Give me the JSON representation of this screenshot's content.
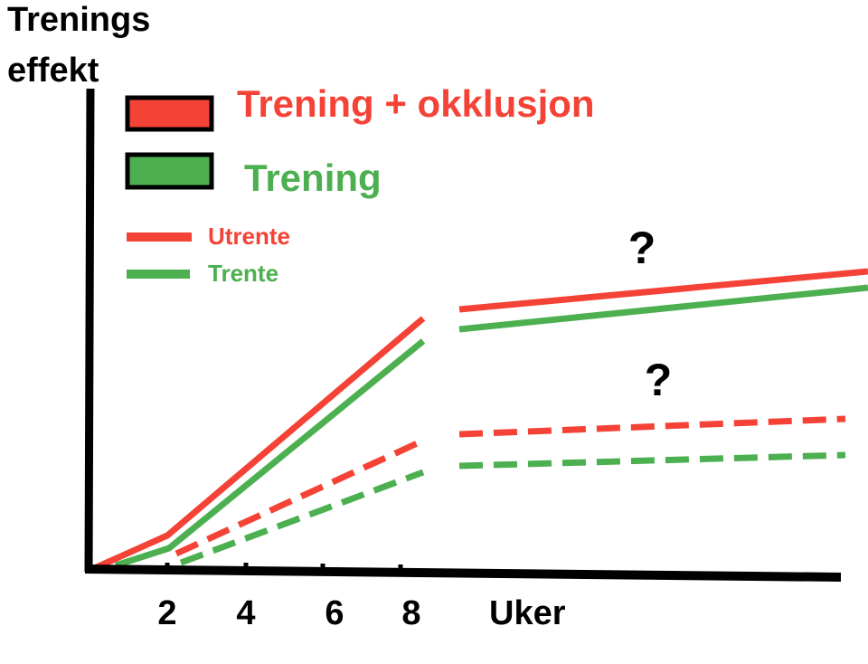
{
  "y_axis_label": {
    "line1": "Trenings",
    "line2": "effekt"
  },
  "legend_groups": [
    {
      "label": "Trening + okklusjon"
    },
    {
      "label": "Trening"
    }
  ],
  "legend_status": [
    {
      "label": "Utrente"
    },
    {
      "label": "Trente"
    }
  ],
  "x_ticks": [
    "2",
    "4",
    "6",
    "8"
  ],
  "x_axis_label": "Uker",
  "annotations": [
    "?",
    "?"
  ]
}
